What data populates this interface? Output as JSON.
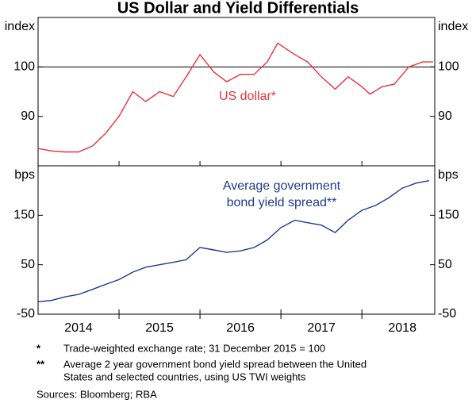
{
  "title": "US Dollar and Yield Differentials",
  "chart_data": [
    {
      "type": "line",
      "y_label": "index",
      "ylim": [
        80,
        110
      ],
      "yticks": [
        90,
        100
      ],
      "hline": 100,
      "xlim": [
        2014,
        2018.9
      ],
      "xticks": [
        2015,
        2016,
        2017,
        2018
      ],
      "annotation": [
        "US dollar*"
      ],
      "series": [
        {
          "color": "#e8323c",
          "x": [
            2014.0,
            2014.17,
            2014.33,
            2014.5,
            2014.67,
            2014.83,
            2015.0,
            2015.17,
            2015.33,
            2015.5,
            2015.67,
            2015.83,
            2016.0,
            2016.17,
            2016.33,
            2016.5,
            2016.67,
            2016.83,
            2016.96,
            2017.17,
            2017.33,
            2017.5,
            2017.67,
            2017.83,
            2018.0,
            2018.1,
            2018.25,
            2018.4,
            2018.58,
            2018.75,
            2018.88
          ],
          "values": [
            83.5,
            83,
            82.8,
            82.8,
            84,
            86.5,
            90,
            95,
            93,
            95,
            94,
            98,
            102.5,
            99,
            97,
            98.5,
            98.5,
            101,
            104.8,
            102.5,
            101,
            98,
            95.5,
            98,
            96,
            94.5,
            96,
            96.5,
            100,
            101,
            101
          ]
        }
      ]
    },
    {
      "type": "line",
      "y_label": "bps",
      "ylim": [
        -50,
        250
      ],
      "yticks": [
        -50,
        50,
        150
      ],
      "xlim": [
        2014,
        2018.9
      ],
      "xticks": [
        2015,
        2016,
        2017,
        2018
      ],
      "categories": [
        "2014",
        "2015",
        "2016",
        "2017",
        "2018"
      ],
      "annotation": [
        "Average government",
        "bond yield spread**"
      ],
      "series": [
        {
          "color": "#1f3a8f",
          "x": [
            2014.0,
            2014.17,
            2014.33,
            2014.5,
            2014.67,
            2014.83,
            2015.0,
            2015.17,
            2015.33,
            2015.5,
            2015.67,
            2015.83,
            2016.0,
            2016.17,
            2016.33,
            2016.5,
            2016.67,
            2016.83,
            2017.0,
            2017.17,
            2017.33,
            2017.5,
            2017.67,
            2017.83,
            2018.0,
            2018.17,
            2018.33,
            2018.5,
            2018.67,
            2018.83
          ],
          "values": [
            -25,
            -22,
            -15,
            -10,
            0,
            10,
            20,
            35,
            45,
            50,
            55,
            60,
            85,
            80,
            75,
            78,
            85,
            100,
            125,
            140,
            135,
            130,
            115,
            140,
            160,
            170,
            185,
            205,
            215,
            220
          ]
        }
      ]
    }
  ],
  "footnotes": [
    {
      "mark": "*",
      "text": [
        "Trade-weighted exchange rate; 31 December 2015 = 100"
      ]
    },
    {
      "mark": "**",
      "text": [
        "Average 2 year government bond yield spread between the United",
        "States and selected countries, using US TWI weights"
      ]
    }
  ],
  "sources": "Sources: Bloomberg; RBA"
}
